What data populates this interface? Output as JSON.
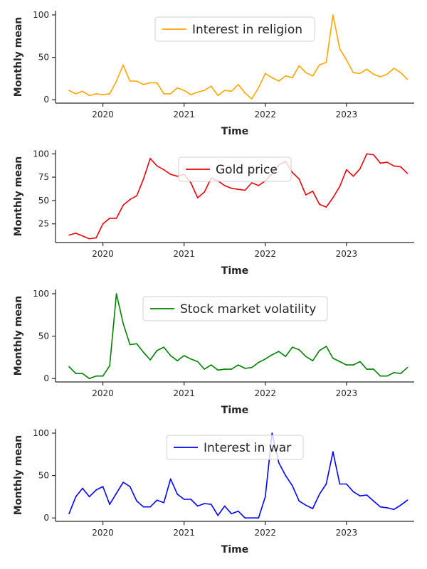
{
  "figure": {
    "background": "#ffffff",
    "axis_color": "#262626"
  },
  "chart_data": [
    {
      "type": "line",
      "xlabel": "Time",
      "ylabel": "Monthly mean",
      "xticks": [
        "2020",
        "2021",
        "2022",
        "2023"
      ],
      "yticks": [
        0,
        50,
        100
      ],
      "ylim": [
        -4,
        105
      ],
      "xlim": [
        "2019-06",
        "2023-11"
      ],
      "legend_position": "top-center",
      "x": [
        "2019-08",
        "2019-09",
        "2019-10",
        "2019-11",
        "2019-12",
        "2020-01",
        "2020-02",
        "2020-03",
        "2020-04",
        "2020-05",
        "2020-06",
        "2020-07",
        "2020-08",
        "2020-09",
        "2020-10",
        "2020-11",
        "2020-12",
        "2021-01",
        "2021-02",
        "2021-03",
        "2021-04",
        "2021-05",
        "2021-06",
        "2021-07",
        "2021-08",
        "2021-09",
        "2021-10",
        "2021-11",
        "2021-12",
        "2022-01",
        "2022-02",
        "2022-03",
        "2022-04",
        "2022-05",
        "2022-06",
        "2022-07",
        "2022-08",
        "2022-09",
        "2022-10",
        "2022-11",
        "2022-12",
        "2023-01",
        "2023-02",
        "2023-03",
        "2023-04",
        "2023-05",
        "2023-06",
        "2023-07",
        "2023-08",
        "2023-09",
        "2023-10"
      ],
      "series": [
        {
          "name": "Interest in religion",
          "color": "#ffa500",
          "values": [
            11,
            7,
            10,
            5,
            7,
            6,
            7,
            22,
            41,
            22,
            22,
            18,
            20,
            20,
            7,
            7,
            14,
            11,
            6,
            9,
            11,
            16,
            5,
            11,
            10,
            18,
            8,
            1,
            14,
            31,
            26,
            22,
            28,
            26,
            40,
            32,
            28,
            41,
            44,
            100,
            60,
            47,
            32,
            31,
            36,
            30,
            27,
            30,
            37,
            32,
            24
          ]
        }
      ]
    },
    {
      "type": "line",
      "xlabel": "Time",
      "ylabel": "Monthly mean",
      "xticks": [
        "2020",
        "2021",
        "2022",
        "2023"
      ],
      "yticks": [
        25,
        50,
        75,
        100
      ],
      "ylim": [
        5,
        104
      ],
      "xlim": [
        "2019-06",
        "2023-11"
      ],
      "legend_position": "top-center",
      "x": [
        "2019-08",
        "2019-09",
        "2019-10",
        "2019-11",
        "2019-12",
        "2020-01",
        "2020-02",
        "2020-03",
        "2020-04",
        "2020-05",
        "2020-06",
        "2020-07",
        "2020-08",
        "2020-09",
        "2020-10",
        "2020-11",
        "2020-12",
        "2021-01",
        "2021-02",
        "2021-03",
        "2021-04",
        "2021-05",
        "2021-06",
        "2021-07",
        "2021-08",
        "2021-09",
        "2021-10",
        "2021-11",
        "2021-12",
        "2022-01",
        "2022-02",
        "2022-03",
        "2022-04",
        "2022-05",
        "2022-06",
        "2022-07",
        "2022-08",
        "2022-09",
        "2022-10",
        "2022-11",
        "2022-12",
        "2023-01",
        "2023-02",
        "2023-03",
        "2023-04",
        "2023-05",
        "2023-06",
        "2023-07",
        "2023-08",
        "2023-09",
        "2023-10"
      ],
      "series": [
        {
          "name": "Gold price",
          "color": "#e8000b",
          "values": [
            13,
            15,
            12,
            9,
            10,
            25,
            31,
            31,
            45,
            51,
            55,
            73,
            95,
            87,
            83,
            78,
            76,
            78,
            69,
            53,
            59,
            74,
            71,
            66,
            63,
            62,
            61,
            69,
            66,
            71,
            79,
            88,
            92,
            80,
            73,
            56,
            60,
            46,
            43,
            53,
            65,
            83,
            76,
            84,
            100,
            99,
            90,
            91,
            87,
            86,
            79
          ]
        }
      ]
    },
    {
      "type": "line",
      "xlabel": "Time",
      "ylabel": "Monthly mean",
      "xticks": [
        "2020",
        "2021",
        "2022",
        "2023"
      ],
      "yticks": [
        0,
        50,
        100
      ],
      "ylim": [
        -4,
        105
      ],
      "xlim": [
        "2019-06",
        "2023-11"
      ],
      "legend_position": "top-center",
      "x": [
        "2019-08",
        "2019-09",
        "2019-10",
        "2019-11",
        "2019-12",
        "2020-01",
        "2020-02",
        "2020-03",
        "2020-04",
        "2020-05",
        "2020-06",
        "2020-07",
        "2020-08",
        "2020-09",
        "2020-10",
        "2020-11",
        "2020-12",
        "2021-01",
        "2021-02",
        "2021-03",
        "2021-04",
        "2021-05",
        "2021-06",
        "2021-07",
        "2021-08",
        "2021-09",
        "2021-10",
        "2021-11",
        "2021-12",
        "2022-01",
        "2022-02",
        "2022-03",
        "2022-04",
        "2022-05",
        "2022-06",
        "2022-07",
        "2022-08",
        "2022-09",
        "2022-10",
        "2022-11",
        "2022-12",
        "2023-01",
        "2023-02",
        "2023-03",
        "2023-04",
        "2023-05",
        "2023-06",
        "2023-07",
        "2023-08",
        "2023-09",
        "2023-10"
      ],
      "series": [
        {
          "name": "Stock market volatility",
          "color": "#008000",
          "values": [
            14,
            6,
            6,
            0,
            3,
            3,
            15,
            100,
            65,
            40,
            41,
            31,
            22,
            33,
            37,
            27,
            21,
            27,
            23,
            20,
            11,
            16,
            10,
            11,
            11,
            16,
            12,
            13,
            19,
            23,
            28,
            32,
            26,
            37,
            34,
            26,
            21,
            33,
            38,
            24,
            20,
            16,
            16,
            20,
            11,
            11,
            3,
            3,
            7,
            6,
            13
          ]
        }
      ]
    },
    {
      "type": "line",
      "xlabel": "Time",
      "ylabel": "Monthly mean",
      "xticks": [
        "2020",
        "2021",
        "2022",
        "2023"
      ],
      "yticks": [
        0,
        50,
        100
      ],
      "ylim": [
        -4,
        105
      ],
      "xlim": [
        "2019-06",
        "2023-11"
      ],
      "legend_position": "top-center",
      "x": [
        "2019-08",
        "2019-09",
        "2019-10",
        "2019-11",
        "2019-12",
        "2020-01",
        "2020-02",
        "2020-03",
        "2020-04",
        "2020-05",
        "2020-06",
        "2020-07",
        "2020-08",
        "2020-09",
        "2020-10",
        "2020-11",
        "2020-12",
        "2021-01",
        "2021-02",
        "2021-03",
        "2021-04",
        "2021-05",
        "2021-06",
        "2021-07",
        "2021-08",
        "2021-09",
        "2021-10",
        "2021-11",
        "2021-12",
        "2022-01",
        "2022-02",
        "2022-03",
        "2022-04",
        "2022-05",
        "2022-06",
        "2022-07",
        "2022-08",
        "2022-09",
        "2022-10",
        "2022-11",
        "2022-12",
        "2023-01",
        "2023-02",
        "2023-03",
        "2023-04",
        "2023-05",
        "2023-06",
        "2023-07",
        "2023-08",
        "2023-09",
        "2023-10"
      ],
      "series": [
        {
          "name": "Interest in war",
          "color": "#0000ff",
          "values": [
            5,
            25,
            35,
            25,
            33,
            37,
            16,
            29,
            42,
            37,
            20,
            13,
            13,
            21,
            18,
            46,
            28,
            22,
            22,
            14,
            17,
            16,
            3,
            14,
            5,
            8,
            0,
            0,
            0,
            25,
            100,
            65,
            50,
            38,
            20,
            15,
            11,
            28,
            40,
            78,
            40,
            40,
            31,
            26,
            27,
            20,
            13,
            12,
            10,
            15,
            21
          ]
        }
      ]
    }
  ]
}
